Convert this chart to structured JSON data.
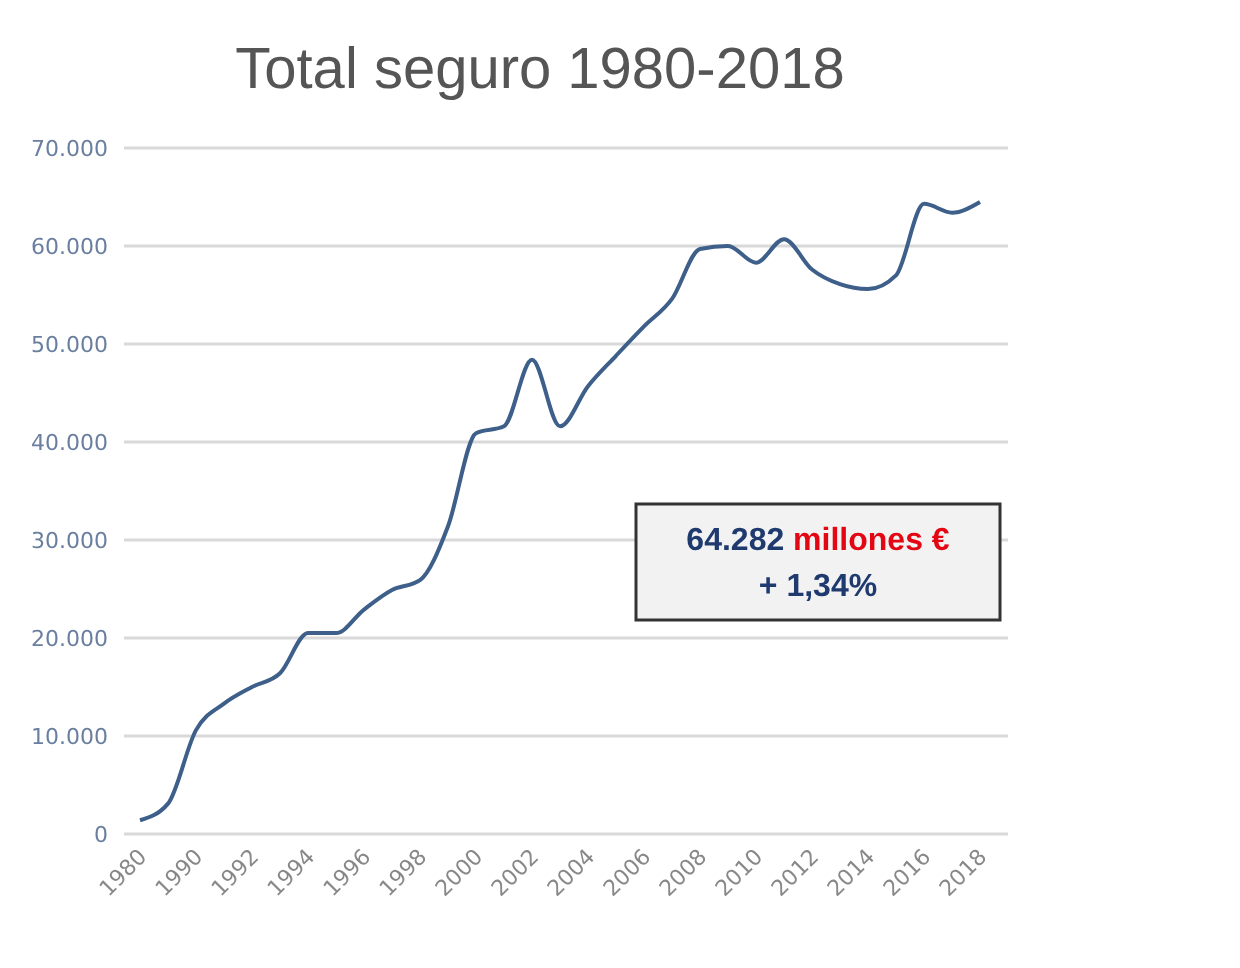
{
  "chart_data": {
    "type": "line",
    "title": "Total seguro 1980-2018",
    "categories": [
      "1980",
      null,
      "1990",
      null,
      "1992",
      null,
      "1994",
      null,
      "1996",
      null,
      "1998",
      null,
      "2000",
      null,
      "2002",
      null,
      "2004",
      null,
      "2006",
      null,
      "2008",
      null,
      "2010",
      null,
      "2012",
      null,
      "2014",
      null,
      "2016",
      null,
      "2018"
    ],
    "series": [
      {
        "color": "#3d5f8a",
        "values": [
          1400,
          3100,
          10600,
          13300,
          15000,
          16400,
          20500,
          20500,
          22900,
          24900,
          25900,
          31400,
          40900,
          41600,
          48400,
          41600,
          45700,
          48800,
          51800,
          54600,
          59700,
          60000,
          58300,
          60700,
          57600,
          56100,
          55600,
          57000,
          64300,
          63400,
          64500
        ]
      }
    ],
    "ylim": [
      0,
      70000
    ],
    "yticks": [
      0,
      {
        "value": 10000,
        "label": "10.000"
      },
      {
        "value": 20000,
        "label": "20.000"
      },
      {
        "value": 30000,
        "label": "30.000"
      },
      {
        "value": 40000,
        "label": "40.000"
      },
      {
        "value": 50000,
        "label": "50.000"
      },
      {
        "value": 60000,
        "label": "60.000"
      },
      {
        "value": 70000,
        "label": "70.000"
      }
    ],
    "grid": "y",
    "marker": "none",
    "line_style": "solid",
    "annotations": [
      "64.282 millones €",
      "+ 1,34%"
    ]
  }
}
